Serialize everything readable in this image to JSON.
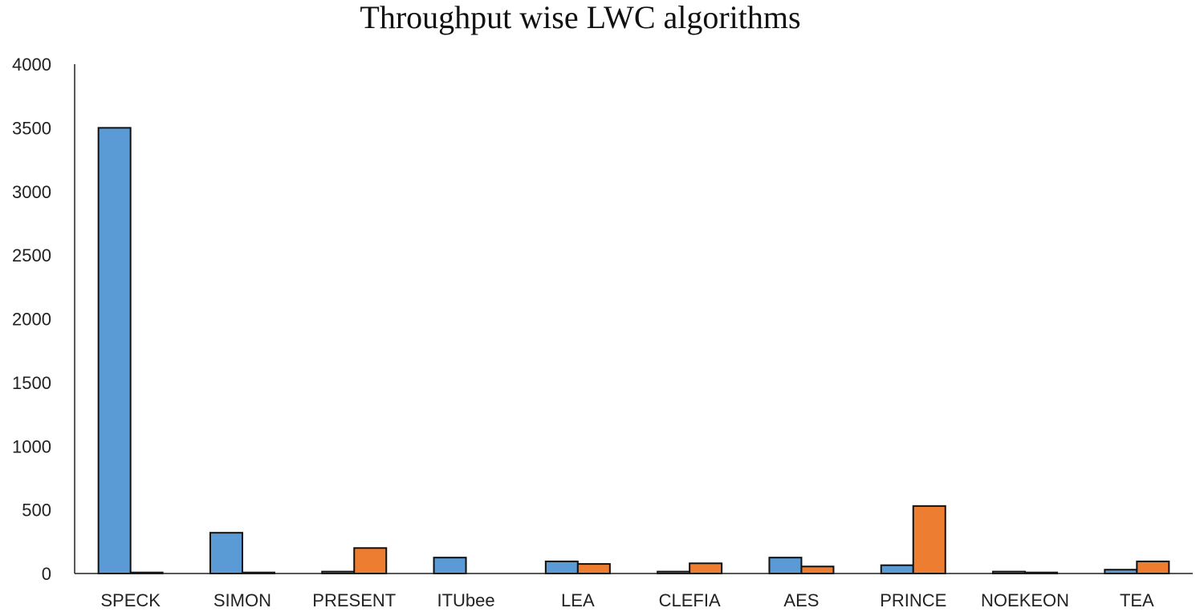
{
  "chart_data": {
    "type": "bar",
    "title": "Throughput wise LWC algorithms",
    "xlabel": "",
    "ylabel": "",
    "ylim": [
      0,
      4000
    ],
    "yticks": [
      0,
      500,
      1000,
      1500,
      2000,
      2500,
      3000,
      3500,
      4000
    ],
    "grid": false,
    "legend": "none",
    "categories": [
      "SPECK",
      "SIMON",
      "PRESENT",
      "ITUbee",
      "LEA",
      "CLEFIA",
      "AES",
      "PRINCE",
      "NOEKEON",
      "TEA"
    ],
    "series": [
      {
        "color": "#5b9bd5",
        "values": [
          3500,
          320,
          15,
          125,
          95,
          15,
          125,
          65,
          15,
          30
        ]
      },
      {
        "color": "#ed7d31",
        "values": [
          8,
          8,
          200,
          0,
          75,
          80,
          55,
          530,
          8,
          95
        ]
      }
    ]
  }
}
